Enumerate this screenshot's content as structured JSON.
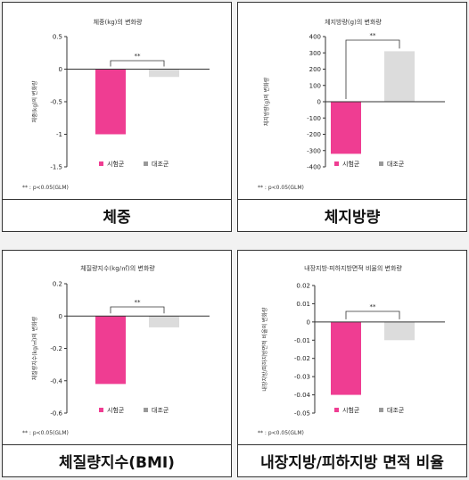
{
  "colors": {
    "treatment": "#ef3d92",
    "control": "#dcdcdc",
    "axis": "#333333"
  },
  "chart_data": [
    {
      "type": "bar",
      "title": "체중(kg)의 변화량",
      "ylabel": "체중(kg)의 변화량",
      "caption": "체중",
      "note": "** : p<0.05(GLM)",
      "significance": "**",
      "ylim": [
        -1.5,
        0.5
      ],
      "yticks": [
        0.5,
        0,
        -0.5,
        -1,
        -1.5
      ],
      "ytick_labels": [
        "0.5",
        "0",
        "-0.5",
        "-1",
        "-1.5"
      ],
      "series": [
        {
          "name": "시험군",
          "values": [
            -1.0
          ]
        },
        {
          "name": "대조군",
          "values": [
            -0.12
          ]
        }
      ]
    },
    {
      "type": "bar",
      "title": "체지방량(g)의 변화량",
      "ylabel": "체지방량(g)의 변화량",
      "caption": "체지방량",
      "note": "** : p<0.05(GLM)",
      "significance": "**",
      "ylim": [
        -400,
        400
      ],
      "yticks": [
        400,
        300,
        200,
        100,
        0,
        -100,
        -200,
        -300,
        -400
      ],
      "ytick_labels": [
        "400",
        "300",
        "200",
        "100",
        "0",
        "-100",
        "-200",
        "-300",
        "-400"
      ],
      "series": [
        {
          "name": "시험군",
          "values": [
            -320
          ]
        },
        {
          "name": "대조군",
          "values": [
            310
          ]
        }
      ]
    },
    {
      "type": "bar",
      "title": "체질량지수(kg/㎡)의 변화량",
      "ylabel": "체질량지수(kg/㎡)의 변화량",
      "caption": "체질량지수(BMI)",
      "note": "** : p<0.05(GLM)",
      "significance": "**",
      "ylim": [
        -0.6,
        0.2
      ],
      "yticks": [
        0.2,
        0,
        -0.2,
        -0.4,
        -0.6
      ],
      "ytick_labels": [
        "0.2",
        "0",
        "-0.2",
        "-0.4",
        "-0.6"
      ],
      "series": [
        {
          "name": "시험군",
          "values": [
            -0.42
          ]
        },
        {
          "name": "대조군",
          "values": [
            -0.07
          ]
        }
      ]
    },
    {
      "type": "bar",
      "title": "내장지방·피하지방면적 비율의 변화량",
      "ylabel": "내장지방/피하지방면적 비율의 변화량",
      "caption": "내장지방/피하지방 면적 비율",
      "note": "** : p<0.05(GLM)",
      "significance": "**",
      "ylim": [
        -0.05,
        0.02
      ],
      "yticks": [
        0.02,
        0.01,
        0,
        -0.01,
        -0.02,
        -0.03,
        -0.04,
        -0.05
      ],
      "ytick_labels": [
        "0.02",
        "0.01",
        "0",
        "-0.01",
        "-0.02",
        "-0.03",
        "-0.04",
        "-0.05"
      ],
      "series": [
        {
          "name": "시험군",
          "values": [
            -0.04
          ]
        },
        {
          "name": "대조군",
          "values": [
            -0.01
          ]
        }
      ]
    }
  ]
}
